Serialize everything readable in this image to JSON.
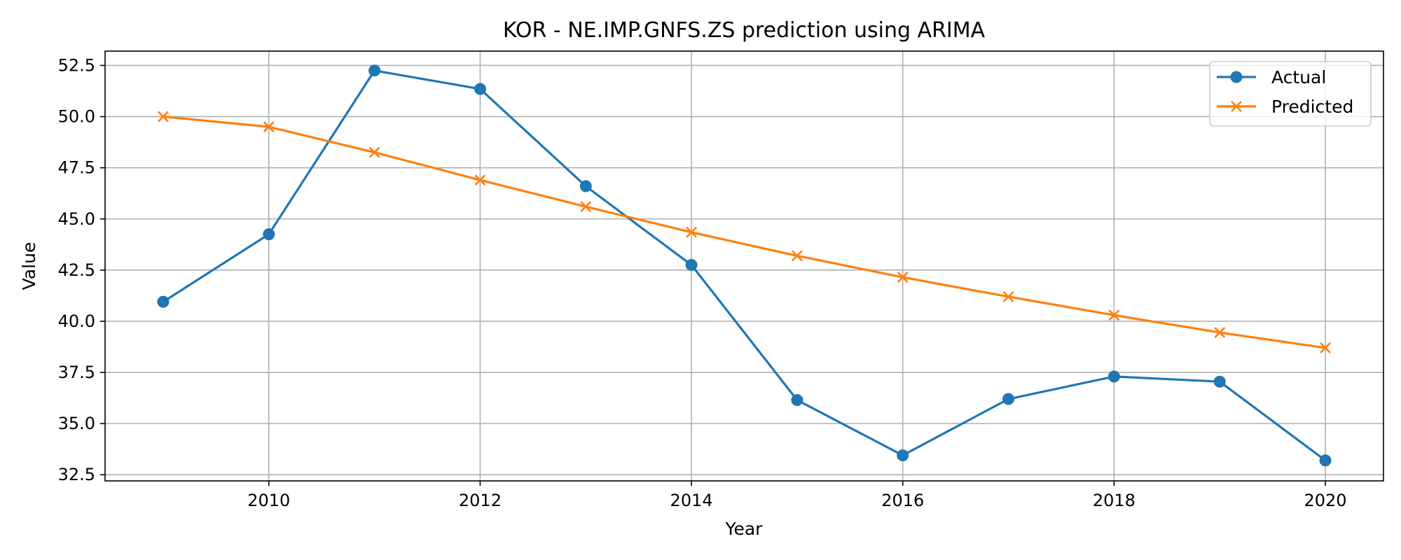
{
  "chart_data": {
    "type": "line",
    "title": "KOR - NE.IMP.GNFS.ZS prediction using ARIMA",
    "xlabel": "Year",
    "ylabel": "Value",
    "xlim": [
      2008.45,
      2020.55
    ],
    "ylim": [
      32.2,
      53.2
    ],
    "x_ticks": [
      2010,
      2012,
      2014,
      2016,
      2018,
      2020
    ],
    "y_ticks": [
      32.5,
      35.0,
      37.5,
      40.0,
      42.5,
      45.0,
      47.5,
      50.0,
      52.5
    ],
    "grid": true,
    "legend_position": "upper-right",
    "x": [
      2009,
      2010,
      2011,
      2012,
      2013,
      2014,
      2015,
      2016,
      2017,
      2018,
      2019,
      2020
    ],
    "series": [
      {
        "name": "Actual",
        "color": "#1f77b4",
        "marker": "circle",
        "values": [
          40.95,
          44.25,
          52.25,
          51.35,
          46.6,
          42.75,
          36.15,
          33.45,
          36.2,
          37.3,
          37.05,
          33.2
        ]
      },
      {
        "name": "Predicted",
        "color": "#ff7f0e",
        "marker": "x",
        "values": [
          50.0,
          49.5,
          48.25,
          46.9,
          45.6,
          44.35,
          43.2,
          42.15,
          41.2,
          40.3,
          39.45,
          38.7
        ]
      }
    ]
  }
}
